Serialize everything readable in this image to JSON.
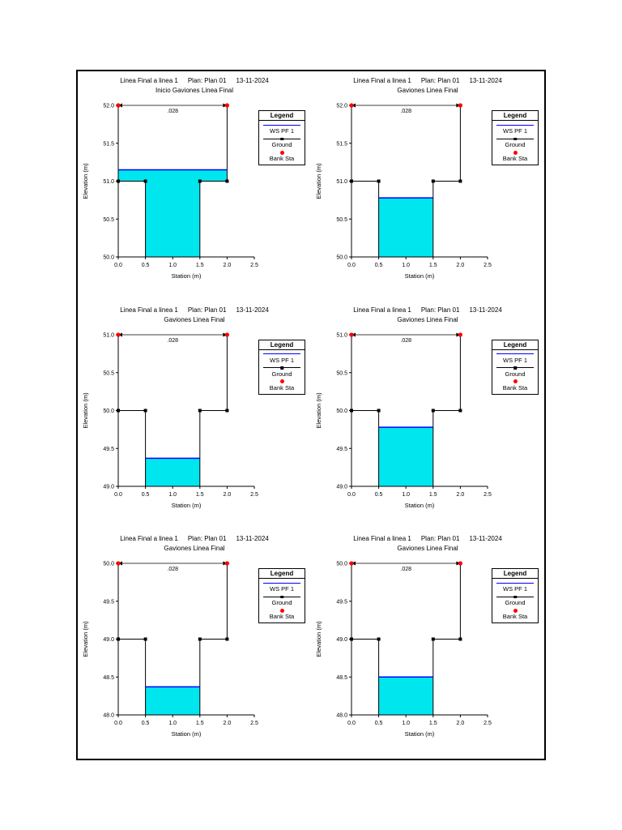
{
  "page": {
    "background": "#ffffff",
    "border_color": "#000000"
  },
  "colors": {
    "water_fill": "#00e6ee",
    "ws_line": "#0000ff",
    "ground": "#000000",
    "bank_sta": "#ff0000",
    "axis": "#000000"
  },
  "legend": {
    "title": "Legend",
    "items": [
      {
        "name": "ws-pf1",
        "label": "WS PF 1",
        "style": "line",
        "color": "#0000ff"
      },
      {
        "name": "ground",
        "label": "Ground",
        "style": "line-square",
        "color": "#000000"
      },
      {
        "name": "bank-sta",
        "label": "Bank Sta",
        "style": "dot",
        "color": "#ff0000"
      }
    ]
  },
  "chart_data": [
    {
      "type": "line",
      "header": {
        "project": "Linea Final a linea 1",
        "plan": "Plan: Plan 01",
        "date": "13-11-2024"
      },
      "title": "Inicio Gaviones Linea Final",
      "xlabel": "Station (m)",
      "ylabel": "Elevation (m)",
      "xlim": [
        0.0,
        2.5
      ],
      "ylim": [
        50.0,
        52.0
      ],
      "x_ticks": [
        0.0,
        0.5,
        1.0,
        1.5,
        2.0,
        2.5
      ],
      "y_ticks": [
        50.0,
        50.5,
        51.0,
        51.5,
        52.0
      ],
      "manning": {
        "label": ".028",
        "span": [
          0.0,
          2.0
        ]
      },
      "ground_points": [
        [
          0,
          52
        ],
        [
          0,
          51
        ],
        [
          0.5,
          51
        ],
        [
          0.5,
          50
        ],
        [
          1.5,
          50
        ],
        [
          1.5,
          51
        ],
        [
          2,
          51
        ],
        [
          2,
          52
        ]
      ],
      "ground_markers": [
        [
          0,
          51
        ],
        [
          0.5,
          51
        ],
        [
          1.5,
          51
        ],
        [
          2,
          51
        ]
      ],
      "ws_elevation": 51.15,
      "ws_extent": [
        0.0,
        2.0
      ],
      "bank_sta_points": [
        [
          0,
          52
        ],
        [
          2,
          52
        ]
      ],
      "water_polygon": [
        [
          0,
          51.15
        ],
        [
          2,
          51.15
        ],
        [
          2,
          51
        ],
        [
          1.5,
          51
        ],
        [
          1.5,
          50
        ],
        [
          0.5,
          50
        ],
        [
          0.5,
          51
        ],
        [
          0,
          51
        ]
      ]
    },
    {
      "type": "line",
      "header": {
        "project": "Linea Final a linea 1",
        "plan": "Plan: Plan 01",
        "date": "13-11-2024"
      },
      "title": "Gaviones Linea Final",
      "xlabel": "Station (m)",
      "ylabel": "Elevation (m)",
      "xlim": [
        0.0,
        2.5
      ],
      "ylim": [
        50.0,
        52.0
      ],
      "x_ticks": [
        0.0,
        0.5,
        1.0,
        1.5,
        2.0,
        2.5
      ],
      "y_ticks": [
        50.0,
        50.5,
        51.0,
        51.5,
        52.0
      ],
      "manning": {
        "label": ".028",
        "span": [
          0.0,
          2.0
        ]
      },
      "ground_points": [
        [
          0,
          52
        ],
        [
          0,
          51
        ],
        [
          0.5,
          51
        ],
        [
          0.5,
          50
        ],
        [
          1.5,
          50
        ],
        [
          1.5,
          51
        ],
        [
          2,
          51
        ],
        [
          2,
          52
        ]
      ],
      "ground_markers": [
        [
          0,
          51
        ],
        [
          0.5,
          51
        ],
        [
          1.5,
          51
        ],
        [
          2,
          51
        ]
      ],
      "ws_elevation": 50.78,
      "ws_extent": [
        0.5,
        1.5
      ],
      "bank_sta_points": [
        [
          0,
          52
        ],
        [
          2,
          52
        ]
      ],
      "water_polygon": [
        [
          0.5,
          50.78
        ],
        [
          1.5,
          50.78
        ],
        [
          1.5,
          50
        ],
        [
          0.5,
          50
        ]
      ]
    },
    {
      "type": "line",
      "header": {
        "project": "Linea Final a linea 1",
        "plan": "Plan: Plan 01",
        "date": "13-11-2024"
      },
      "title": "Gaviones Linea Final",
      "xlabel": "Station (m)",
      "ylabel": "Elevation (m)",
      "xlim": [
        0.0,
        2.5
      ],
      "ylim": [
        49.0,
        51.0
      ],
      "x_ticks": [
        0.0,
        0.5,
        1.0,
        1.5,
        2.0,
        2.5
      ],
      "y_ticks": [
        49.0,
        49.5,
        50.0,
        50.5,
        51.0
      ],
      "manning": {
        "label": ".028",
        "span": [
          0.0,
          2.0
        ]
      },
      "ground_points": [
        [
          0,
          51
        ],
        [
          0,
          50
        ],
        [
          0.5,
          50
        ],
        [
          0.5,
          49
        ],
        [
          1.5,
          49
        ],
        [
          1.5,
          50
        ],
        [
          2,
          50
        ],
        [
          2,
          51
        ]
      ],
      "ground_markers": [
        [
          0,
          50
        ],
        [
          0.5,
          50
        ],
        [
          1.5,
          50
        ],
        [
          2,
          50
        ]
      ],
      "ws_elevation": 49.37,
      "ws_extent": [
        0.5,
        1.5
      ],
      "bank_sta_points": [
        [
          0,
          51
        ],
        [
          2,
          51
        ]
      ],
      "water_polygon": [
        [
          0.5,
          49.37
        ],
        [
          1.5,
          49.37
        ],
        [
          1.5,
          49
        ],
        [
          0.5,
          49
        ]
      ]
    },
    {
      "type": "line",
      "header": {
        "project": "Linea Final a linea 1",
        "plan": "Plan: Plan 01",
        "date": "13-11-2024"
      },
      "title": "Gaviones Linea Final",
      "xlabel": "Station (m)",
      "ylabel": "Elevation (m)",
      "xlim": [
        0.0,
        2.5
      ],
      "ylim": [
        49.0,
        51.0
      ],
      "x_ticks": [
        0.0,
        0.5,
        1.0,
        1.5,
        2.0,
        2.5
      ],
      "y_ticks": [
        49.0,
        49.5,
        50.0,
        50.5,
        51.0
      ],
      "manning": {
        "label": ".028",
        "span": [
          0.0,
          2.0
        ]
      },
      "ground_points": [
        [
          0,
          51
        ],
        [
          0,
          50
        ],
        [
          0.5,
          50
        ],
        [
          0.5,
          49
        ],
        [
          1.5,
          49
        ],
        [
          1.5,
          50
        ],
        [
          2,
          50
        ],
        [
          2,
          51
        ]
      ],
      "ground_markers": [
        [
          0,
          50
        ],
        [
          0.5,
          50
        ],
        [
          1.5,
          50
        ],
        [
          2,
          50
        ]
      ],
      "ws_elevation": 49.78,
      "ws_extent": [
        0.5,
        1.5
      ],
      "bank_sta_points": [
        [
          0,
          51
        ],
        [
          2,
          51
        ]
      ],
      "water_polygon": [
        [
          0.5,
          49.78
        ],
        [
          1.5,
          49.78
        ],
        [
          1.5,
          49
        ],
        [
          0.5,
          49
        ]
      ]
    },
    {
      "type": "line",
      "header": {
        "project": "Linea Final a linea 1",
        "plan": "Plan: Plan 01",
        "date": "13-11-2024"
      },
      "title": "Gaviones Linea Final",
      "xlabel": "Station (m)",
      "ylabel": "Elevation (m)",
      "xlim": [
        0.0,
        2.5
      ],
      "ylim": [
        48.0,
        50.0
      ],
      "x_ticks": [
        0.0,
        0.5,
        1.0,
        1.5,
        2.0,
        2.5
      ],
      "y_ticks": [
        48.0,
        48.5,
        49.0,
        49.5,
        50.0
      ],
      "manning": {
        "label": ".028",
        "span": [
          0.0,
          2.0
        ]
      },
      "ground_points": [
        [
          0,
          50
        ],
        [
          0,
          49
        ],
        [
          0.5,
          49
        ],
        [
          0.5,
          48
        ],
        [
          1.5,
          48
        ],
        [
          1.5,
          49
        ],
        [
          2,
          49
        ],
        [
          2,
          50
        ]
      ],
      "ground_markers": [
        [
          0,
          49
        ],
        [
          0.5,
          49
        ],
        [
          1.5,
          49
        ],
        [
          2,
          49
        ]
      ],
      "ws_elevation": 48.37,
      "ws_extent": [
        0.5,
        1.5
      ],
      "bank_sta_points": [
        [
          0,
          50
        ],
        [
          2,
          50
        ]
      ],
      "water_polygon": [
        [
          0.5,
          48.37
        ],
        [
          1.5,
          48.37
        ],
        [
          1.5,
          48
        ],
        [
          0.5,
          48
        ]
      ]
    },
    {
      "type": "line",
      "header": {
        "project": "Linea Final a linea 1",
        "plan": "Plan: Plan 01",
        "date": "13-11-2024"
      },
      "title": "Gaviones Linea Final",
      "xlabel": "Station (m)",
      "ylabel": "Elevation (m)",
      "xlim": [
        0.0,
        2.5
      ],
      "ylim": [
        48.0,
        50.0
      ],
      "x_ticks": [
        0.0,
        0.5,
        1.0,
        1.5,
        2.0,
        2.5
      ],
      "y_ticks": [
        48.0,
        48.5,
        49.0,
        49.5,
        50.0
      ],
      "manning": {
        "label": ".028",
        "span": [
          0.0,
          2.0
        ]
      },
      "ground_points": [
        [
          0,
          50
        ],
        [
          0,
          49
        ],
        [
          0.5,
          49
        ],
        [
          0.5,
          48
        ],
        [
          1.5,
          48
        ],
        [
          1.5,
          49
        ],
        [
          2,
          49
        ],
        [
          2,
          50
        ]
      ],
      "ground_markers": [
        [
          0,
          49
        ],
        [
          0.5,
          49
        ],
        [
          1.5,
          49
        ],
        [
          2,
          49
        ]
      ],
      "ws_elevation": 48.5,
      "ws_extent": [
        0.5,
        1.5
      ],
      "bank_sta_points": [
        [
          0,
          50
        ],
        [
          2,
          50
        ]
      ],
      "water_polygon": [
        [
          0.5,
          48.5
        ],
        [
          1.5,
          48.5
        ],
        [
          1.5,
          48
        ],
        [
          0.5,
          48
        ]
      ]
    }
  ]
}
